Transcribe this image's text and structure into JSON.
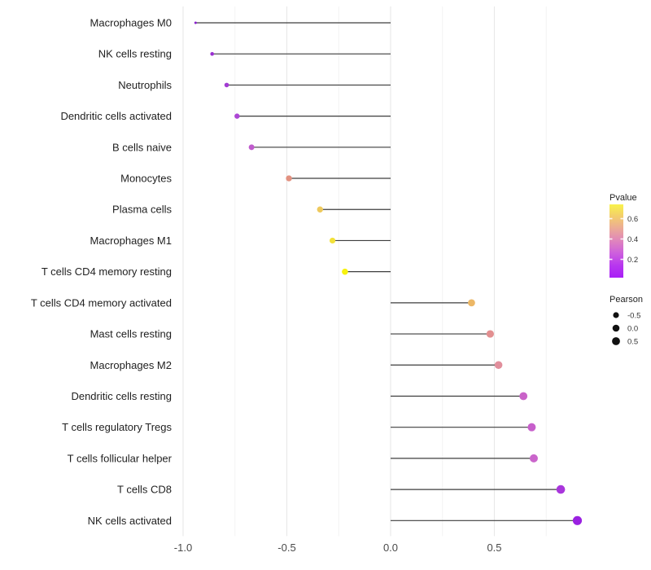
{
  "figure": {
    "background": "#ffffff",
    "panel_background": "#ffffff"
  },
  "chart_data": {
    "type": "lollipop",
    "orientation": "horizontal",
    "title": "",
    "xlabel": "",
    "ylabel": "",
    "xlim": [
      -1.03,
      0.95
    ],
    "x_major_ticks": [
      -1.0,
      -0.5,
      0.0,
      0.5
    ],
    "x_major_tick_labels": [
      "-1.0",
      "-0.5",
      "0.0",
      "0.5"
    ],
    "x_minor_ticks": [
      -0.75,
      -0.25,
      0.25,
      0.75
    ],
    "grid": {
      "vertical": true,
      "horizontal": false,
      "major_color": "#e8e8e8",
      "minor_color": "#f3f3f3"
    },
    "stem_color": "#3d3d3d",
    "axis_text_color": "#4a4a4a",
    "category_text_color": "#1f1f1f",
    "categories": [
      "Macrophages M0",
      "NK cells resting",
      "Neutrophils",
      "Dendritic cells activated",
      "B cells naive",
      "Monocytes",
      "Plasma cells",
      "Macrophages M1",
      "T cells CD4 memory resting",
      "T cells CD4 memory activated",
      "Mast cells resting",
      "Macrophages M2",
      "Dendritic cells resting",
      "T cells regulatory  Tregs",
      "T cells follicular helper",
      "T cells CD8",
      "NK cells activated"
    ],
    "points": [
      {
        "label": "Macrophages M0",
        "pearson": -0.94,
        "pvalue": 0.05,
        "color": "#8a20cd",
        "radius": 1.5
      },
      {
        "label": "NK cells resting",
        "pearson": -0.86,
        "pvalue": 0.08,
        "color": "#9a30d1",
        "radius": 2.3
      },
      {
        "label": "Neutrophils",
        "pearson": -0.79,
        "pvalue": 0.1,
        "color": "#a23bd3",
        "radius": 2.8
      },
      {
        "label": "Dendritic cells activated",
        "pearson": -0.74,
        "pvalue": 0.13,
        "color": "#ad46d5",
        "radius": 3.2
      },
      {
        "label": "B cells naive",
        "pearson": -0.67,
        "pvalue": 0.17,
        "color": "#c05bcd",
        "radius": 3.5
      },
      {
        "label": "Monocytes",
        "pearson": -0.49,
        "pvalue": 0.35,
        "color": "#e29180",
        "radius": 3.7
      },
      {
        "label": "Plasma cells",
        "pearson": -0.34,
        "pvalue": 0.55,
        "color": "#eec95c",
        "radius": 3.7
      },
      {
        "label": "Macrophages M1",
        "pearson": -0.28,
        "pvalue": 0.64,
        "color": "#f2e13a",
        "radius": 3.6
      },
      {
        "label": "T cells CD4 memory resting",
        "pearson": -0.22,
        "pvalue": 0.73,
        "color": "#f7f20e",
        "radius": 3.8
      },
      {
        "label": "T cells CD4 memory activated",
        "pearson": 0.39,
        "pvalue": 0.5,
        "color": "#ecb766",
        "radius": 4.4
      },
      {
        "label": "Mast cells resting",
        "pearson": 0.48,
        "pvalue": 0.36,
        "color": "#e28f90",
        "radius": 4.6
      },
      {
        "label": "Macrophages M2",
        "pearson": 0.52,
        "pvalue": 0.34,
        "color": "#e18f9c",
        "radius": 4.8
      },
      {
        "label": "Dendritic cells resting",
        "pearson": 0.64,
        "pvalue": 0.18,
        "color": "#c963c8",
        "radius": 4.9
      },
      {
        "label": "T cells regulatory  Tregs",
        "pearson": 0.68,
        "pvalue": 0.17,
        "color": "#c75fcb",
        "radius": 5.0
      },
      {
        "label": "T cells follicular helper",
        "pearson": 0.69,
        "pvalue": 0.18,
        "color": "#ca65cb",
        "radius": 5.0
      },
      {
        "label": "T cells CD8",
        "pearson": 0.82,
        "pvalue": 0.08,
        "color": "#a936dc",
        "radius": 5.3
      },
      {
        "label": "NK cells activated",
        "pearson": 0.9,
        "pvalue": 0.03,
        "color": "#9a21e1",
        "radius": 5.6
      }
    ],
    "legend": {
      "position": "right",
      "pvalue": {
        "title": "Pvalue",
        "range": [
          0.02,
          0.74
        ],
        "ticks": [
          {
            "label": "0.6",
            "value": 0.6
          },
          {
            "label": "0.4",
            "value": 0.4
          },
          {
            "label": "0.2",
            "value": 0.2
          }
        ],
        "gradient_top_to_bottom": [
          "#f8f24b",
          "#f3cd6d",
          "#eba998",
          "#df84bd",
          "#cd5fdd",
          "#b837ef",
          "#a91ff6"
        ]
      },
      "pearson": {
        "title": "Pearson",
        "dot_color": "#111111",
        "items": [
          {
            "label": "-0.5",
            "radius": 3.6
          },
          {
            "label": "0.0",
            "radius": 4.3
          },
          {
            "label": "0.5",
            "radius": 4.9
          }
        ]
      }
    }
  }
}
